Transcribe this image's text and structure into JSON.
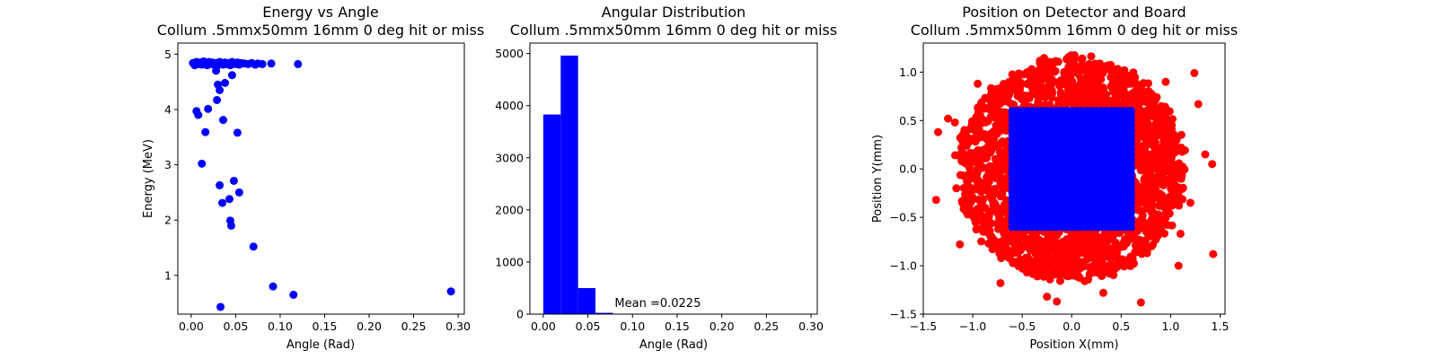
{
  "colors": {
    "blue": "#0000ff",
    "red": "#ff0000"
  },
  "chart_data": [
    {
      "type": "scatter",
      "title": "Energy vs Angle",
      "subtitle": "Collum .5mmx50mm 16mm 0 deg hit or miss",
      "xlabel": "Angle (Rad)",
      "ylabel": "Energy (MeV)",
      "xlim": [
        -0.015,
        0.307
      ],
      "ylim": [
        0.3,
        5.2
      ],
      "xticks": [
        0.0,
        0.05,
        0.1,
        0.15,
        0.2,
        0.25,
        0.3
      ],
      "xtick_labels": [
        "0.00",
        "0.05",
        "0.10",
        "0.15",
        "0.20",
        "0.25",
        "0.30"
      ],
      "yticks": [
        1,
        2,
        3,
        4,
        5
      ],
      "ytick_labels": [
        "1",
        "2",
        "3",
        "4",
        "5"
      ],
      "grid": false,
      "series": [
        {
          "color": "#0000ff",
          "points": [
            [
              0.002,
              4.84
            ],
            [
              0.004,
              4.8
            ],
            [
              0.006,
              4.86
            ],
            [
              0.008,
              4.82
            ],
            [
              0.01,
              4.85
            ],
            [
              0.012,
              4.81
            ],
            [
              0.014,
              4.87
            ],
            [
              0.016,
              4.83
            ],
            [
              0.018,
              4.8
            ],
            [
              0.02,
              4.86
            ],
            [
              0.022,
              4.82
            ],
            [
              0.024,
              4.85
            ],
            [
              0.026,
              4.81
            ],
            [
              0.028,
              4.84
            ],
            [
              0.03,
              4.8
            ],
            [
              0.032,
              4.86
            ],
            [
              0.034,
              4.83
            ],
            [
              0.036,
              4.81
            ],
            [
              0.038,
              4.85
            ],
            [
              0.04,
              4.82
            ],
            [
              0.042,
              4.84
            ],
            [
              0.044,
              4.8
            ],
            [
              0.046,
              4.86
            ],
            [
              0.048,
              4.83
            ],
            [
              0.05,
              4.82
            ],
            [
              0.052,
              4.85
            ],
            [
              0.054,
              4.81
            ],
            [
              0.056,
              4.84
            ],
            [
              0.06,
              4.83
            ],
            [
              0.064,
              4.82
            ],
            [
              0.068,
              4.84
            ],
            [
              0.072,
              4.81
            ],
            [
              0.075,
              4.83
            ],
            [
              0.08,
              4.82
            ],
            [
              0.09,
              4.83
            ],
            [
              0.12,
              4.82
            ],
            [
              0.028,
              4.7
            ],
            [
              0.046,
              4.62
            ],
            [
              0.03,
              4.45
            ],
            [
              0.038,
              4.48
            ],
            [
              0.032,
              4.35
            ],
            [
              0.029,
              4.17
            ],
            [
              0.006,
              3.97
            ],
            [
              0.008,
              3.9
            ],
            [
              0.019,
              4.01
            ],
            [
              0.036,
              3.81
            ],
            [
              0.016,
              3.59
            ],
            [
              0.052,
              3.58
            ],
            [
              0.012,
              3.02
            ],
            [
              0.048,
              2.71
            ],
            [
              0.032,
              2.63
            ],
            [
              0.054,
              2.5
            ],
            [
              0.043,
              2.38
            ],
            [
              0.035,
              2.31
            ],
            [
              0.044,
              1.99
            ],
            [
              0.045,
              1.9
            ],
            [
              0.07,
              1.52
            ],
            [
              0.092,
              0.8
            ],
            [
              0.115,
              0.65
            ],
            [
              0.033,
              0.43
            ],
            [
              0.292,
              0.71
            ]
          ]
        }
      ]
    },
    {
      "type": "bar",
      "title": "Angular Distribution",
      "subtitle": "Collum .5mmx50mm 16mm 0 deg hit or miss",
      "xlabel": "Angle (Rad)",
      "ylabel": "",
      "xlim": [
        -0.015,
        0.307
      ],
      "ylim": [
        0,
        5200
      ],
      "xticks": [
        0.0,
        0.05,
        0.1,
        0.15,
        0.2,
        0.25,
        0.3
      ],
      "xtick_labels": [
        "0.00",
        "0.05",
        "0.10",
        "0.15",
        "0.20",
        "0.25",
        "0.30"
      ],
      "yticks": [
        0,
        1000,
        2000,
        3000,
        4000,
        5000
      ],
      "ytick_labels": [
        "0",
        "1000",
        "2000",
        "3000",
        "4000",
        "5000"
      ],
      "grid": false,
      "bin_edges": [
        0.0,
        0.0195,
        0.039,
        0.0585,
        0.078,
        0.0975,
        0.117,
        0.1365,
        0.156,
        0.1755,
        0.195,
        0.2145,
        0.234,
        0.2535,
        0.273,
        0.2925
      ],
      "values": [
        3830,
        4960,
        500,
        25,
        3,
        1,
        1,
        0,
        0,
        0,
        0,
        0,
        0,
        0,
        1
      ],
      "color": "#0000ff",
      "annotation": {
        "text": "Mean =0.0225",
        "x": 0.08,
        "y": 140
      }
    },
    {
      "type": "scatter",
      "title": "Position on Detector and Board",
      "subtitle": "Collum .5mmx50mm 16mm 0 deg hit or miss",
      "xlabel": "Position X(mm)",
      "ylabel": "Position Y(mm)",
      "xlim": [
        -1.5,
        1.55
      ],
      "ylim": [
        -1.5,
        1.3
      ],
      "xticks": [
        -1.5,
        -1.0,
        -0.5,
        0.0,
        0.5,
        1.0,
        1.5
      ],
      "xtick_labels": [
        "−1.5",
        "−1.0",
        "−0.5",
        "0.0",
        "0.5",
        "1.0",
        "1.5"
      ],
      "yticks": [
        -1.5,
        -1.0,
        -0.5,
        0.0,
        0.5,
        1.0
      ],
      "ytick_labels": [
        "−1.5",
        "−1.0",
        "−0.5",
        "0.0",
        "0.5",
        "1.0"
      ],
      "grid": false,
      "series": [
        {
          "name": "board",
          "color": "#ff0000",
          "distribution": "disc",
          "center": [
            0.0,
            0.0
          ],
          "radius": 1.15,
          "outliers": [
            [
              -1.37,
              -0.32
            ],
            [
              -1.13,
              -0.78
            ],
            [
              -1.35,
              0.38
            ],
            [
              -1.25,
              0.52
            ],
            [
              1.24,
              0.99
            ],
            [
              1.42,
              0.05
            ],
            [
              1.43,
              -0.88
            ],
            [
              1.08,
              -1.0
            ],
            [
              0.7,
              -1.38
            ],
            [
              -0.15,
              -1.37
            ],
            [
              -0.25,
              -1.32
            ],
            [
              1.1,
              -0.67
            ],
            [
              1.28,
              0.67
            ],
            [
              1.35,
              0.15
            ],
            [
              1.2,
              -0.35
            ],
            [
              -1.18,
              0.48
            ],
            [
              0.32,
              -1.28
            ],
            [
              -0.72,
              -1.18
            ],
            [
              -0.95,
              0.88
            ],
            [
              0.95,
              0.9
            ]
          ]
        },
        {
          "name": "detector",
          "color": "#0000ff",
          "distribution": "square",
          "xrange": [
            -0.6,
            0.6
          ],
          "yrange": [
            -0.6,
            0.6
          ]
        }
      ]
    }
  ]
}
